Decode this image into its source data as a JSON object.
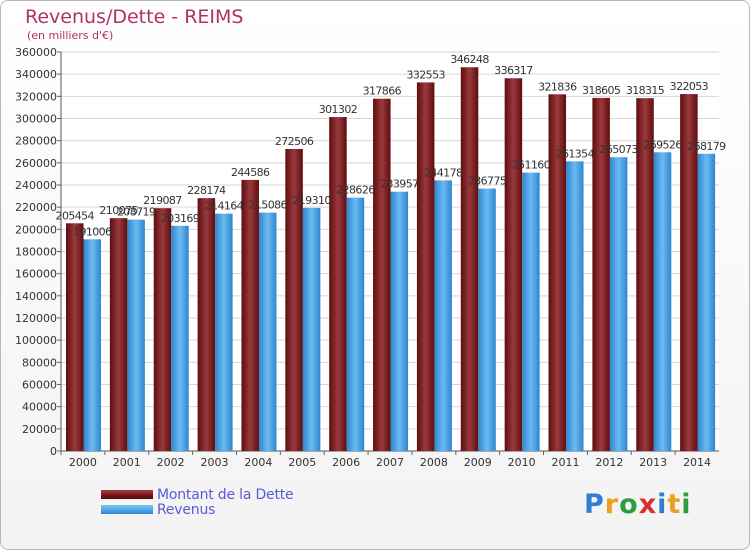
{
  "title": "Revenus/Dette - REIMS",
  "subtitle": "(en milliers d'€)",
  "brand": {
    "letters": [
      "P",
      "r",
      "o",
      "x",
      "i",
      "t",
      "i"
    ],
    "colors": [
      "#2f7dd6",
      "#e8a21c",
      "#2f9d3c",
      "#d9302f",
      "#2f7dd6",
      "#e8a21c",
      "#2f9d3c"
    ]
  },
  "colors": {
    "dette": "#7a1416",
    "revenus": "#4aa3e6",
    "text": "#333333",
    "title": "#b0306a",
    "legend_text": "#5a5ad8"
  },
  "chart_data": {
    "type": "bar",
    "title": "Revenus/Dette - REIMS",
    "ylabel": "(en milliers d'€)",
    "categories": [
      "2000",
      "2001",
      "2002",
      "2003",
      "2004",
      "2005",
      "2006",
      "2007",
      "2008",
      "2009",
      "2010",
      "2011",
      "2012",
      "2013",
      "2014"
    ],
    "series": [
      {
        "name": "Montant de la Dette",
        "values": [
          205454,
          210075,
          219087,
          228174,
          244586,
          272506,
          301302,
          317866,
          332553,
          346248,
          336317,
          321836,
          318605,
          318315,
          322053
        ]
      },
      {
        "name": "Revenus",
        "values": [
          191006,
          208719,
          203169,
          214164,
          215086,
          219310,
          228626,
          233957,
          244178,
          236775,
          251160,
          261354,
          265073,
          269526,
          268179
        ]
      }
    ],
    "ylim": [
      0,
      360000
    ],
    "ytick_step": 20000,
    "grid": true,
    "legend_position": "bottom-left"
  }
}
